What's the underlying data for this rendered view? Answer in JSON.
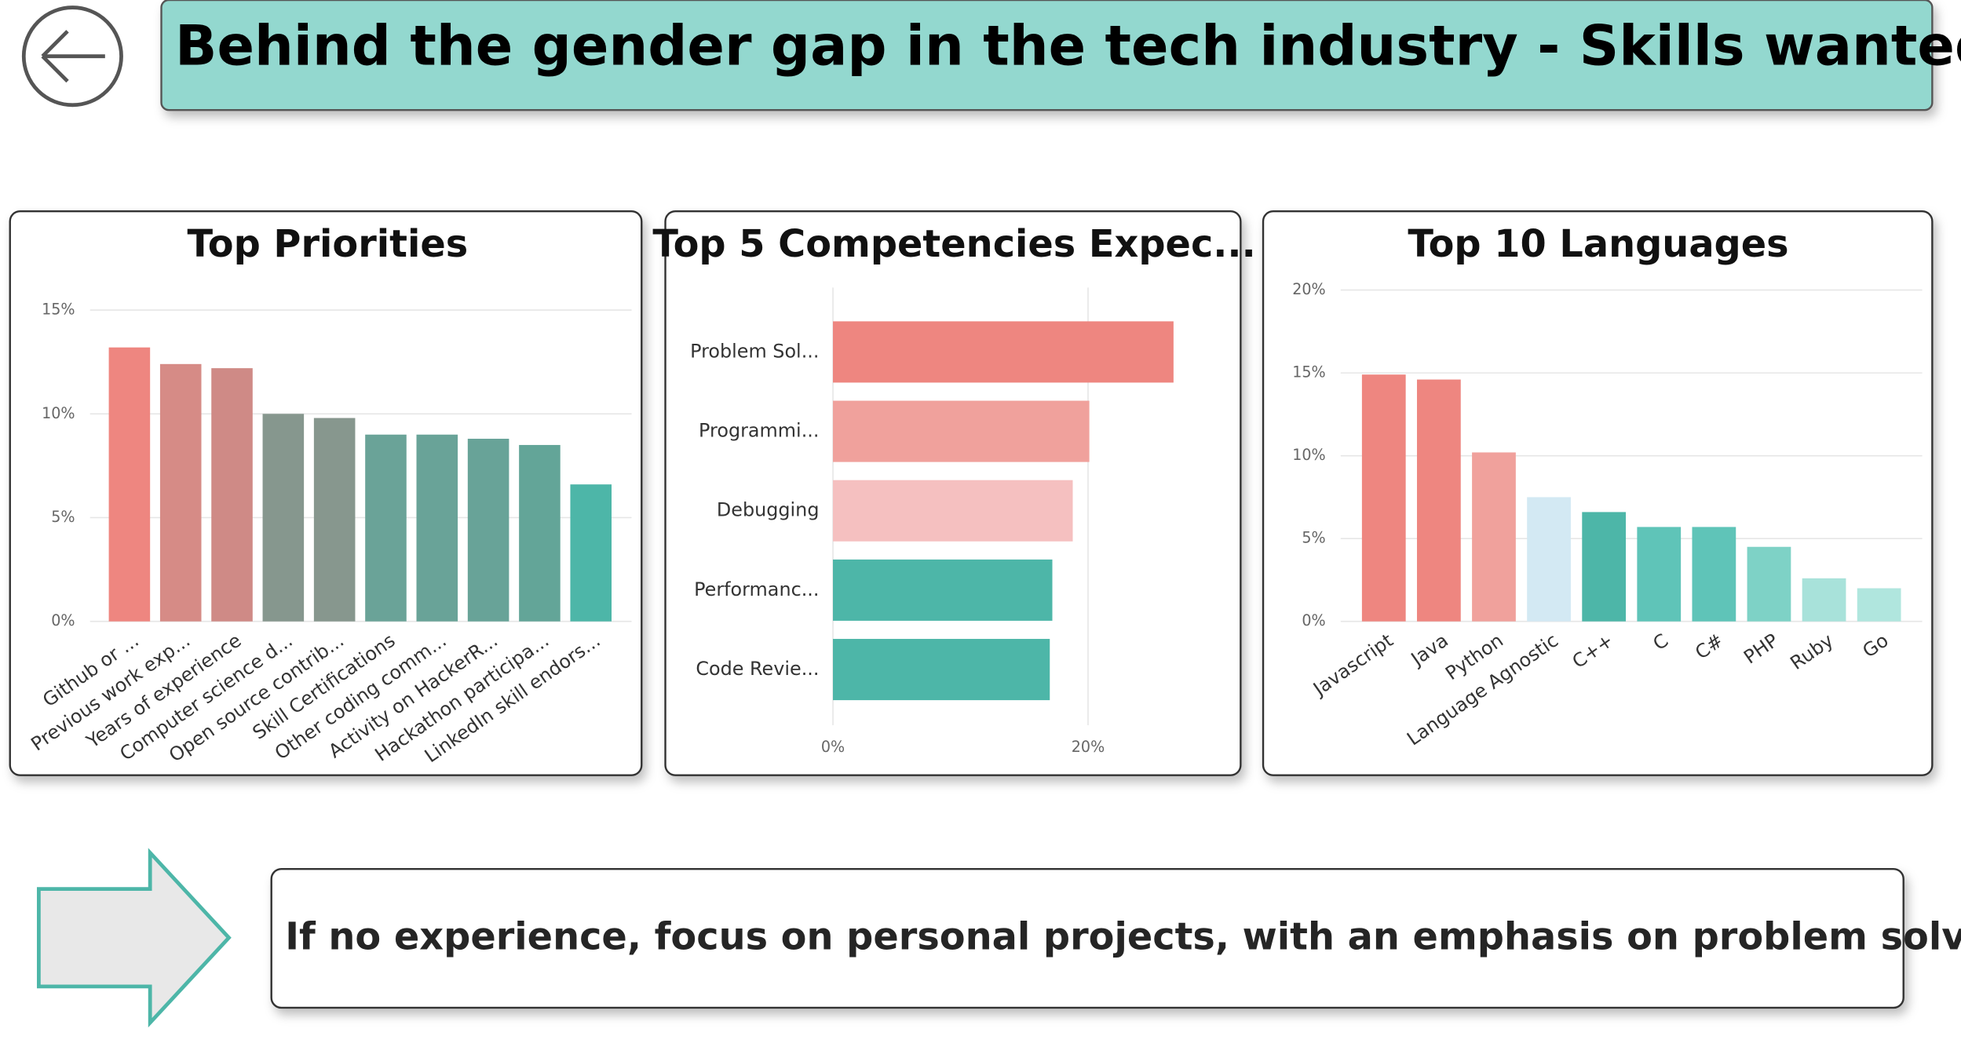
{
  "header": {
    "title": "Behind the gender gap in the tech industry - Skills wanted"
  },
  "chart_data": [
    {
      "type": "bar",
      "title": "Top Priorities",
      "categories": [
        "Github or ...",
        "Previous work exp...",
        "Years of experience",
        "Computer science d...",
        "Open source contrib...",
        "Skill Certifications",
        "Other coding comm...",
        "Activity on HackerR...",
        "Hackathon participa...",
        "LinkedIn skill endors..."
      ],
      "values": [
        13.2,
        12.4,
        12.2,
        10.0,
        9.8,
        9.0,
        9.0,
        8.8,
        8.5,
        6.6
      ],
      "colors": [
        "#ee8680",
        "#d68b86",
        "#cf8a86",
        "#86978e",
        "#87978e",
        "#6aa398",
        "#69a398",
        "#68a398",
        "#63a598",
        "#4db6a8"
      ],
      "ylim": [
        0,
        15
      ],
      "yticks": [
        {
          "value": 0,
          "label": "0%"
        },
        {
          "value": 5,
          "label": "5%"
        },
        {
          "value": 10,
          "label": "10%"
        },
        {
          "value": 15,
          "label": "15%"
        }
      ],
      "grid": true
    },
    {
      "type": "bar",
      "orientation": "horizontal",
      "title": "Top 5 Competencies Expec...",
      "categories": [
        "Problem Sol...",
        "Programmi...",
        "Debugging",
        "Performanc...",
        "Code Revie..."
      ],
      "values": [
        26.7,
        20.1,
        18.8,
        17.2,
        17.0
      ],
      "colors": [
        "#ee8680",
        "#f0a19c",
        "#f5c0c0",
        "#4db6a8",
        "#4db6a8"
      ],
      "xlim": [
        0,
        30
      ],
      "xticks": [
        {
          "value": 0,
          "label": "0%"
        },
        {
          "value": 20,
          "label": "20%"
        }
      ],
      "grid": true
    },
    {
      "type": "bar",
      "title": "Top 10 Languages",
      "categories": [
        "Javascript",
        "Java",
        "Python",
        "Language Agnostic",
        "C++",
        "C",
        "C#",
        "PHP",
        "Ruby",
        "Go"
      ],
      "values": [
        14.9,
        14.6,
        10.2,
        7.5,
        6.6,
        5.7,
        5.7,
        4.5,
        2.6,
        2.0
      ],
      "colors": [
        "#ee8680",
        "#ee8680",
        "#f0a19c",
        "#d3e9f3",
        "#4db6a8",
        "#5fc4b8",
        "#5fc4b8",
        "#7ed2c6",
        "#a8e2da",
        "#b0e6de"
      ],
      "ylim": [
        0,
        20
      ],
      "yticks": [
        {
          "value": 0,
          "label": "0%"
        },
        {
          "value": 5,
          "label": "5%"
        },
        {
          "value": 10,
          "label": "10%"
        },
        {
          "value": 15,
          "label": "15%"
        },
        {
          "value": 20,
          "label": "20%"
        }
      ],
      "grid": true
    }
  ],
  "callout": {
    "text": "If no experience, focus on personal projects, with an emphasis on problem solving."
  }
}
